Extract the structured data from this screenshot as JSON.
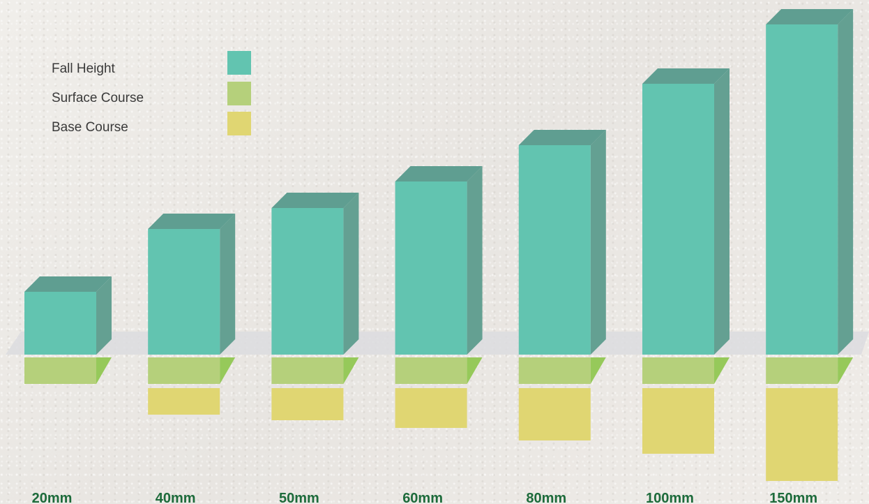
{
  "chart_data": {
    "type": "bar",
    "categories": [
      "20mm",
      "40mm",
      "50mm",
      "60mm",
      "80mm",
      "100mm",
      "150mm"
    ],
    "series": [
      {
        "name": "Fall Height",
        "values": [
          90,
          180,
          210,
          248,
          300,
          388,
          473
        ]
      },
      {
        "name": "Surface Course",
        "values": [
          38,
          38,
          38,
          38,
          38,
          38,
          38
        ]
      },
      {
        "name": "Base Course",
        "values": [
          0,
          38,
          46,
          57,
          75,
          94,
          133
        ]
      }
    ],
    "title": "",
    "xlabel": "",
    "ylabel": "",
    "legend_position": "top-left",
    "grid": false
  },
  "colors": {
    "fall_height": "#62c4b0",
    "fall_height_side": "#64a092",
    "fall_height_top": "#5f9e91",
    "surface_course": "#b5d07b",
    "surface_course_side": "#96c95a",
    "base_course": "#e0d672",
    "platform": "#dcdcdf",
    "category_text": "#1d6b3b"
  }
}
